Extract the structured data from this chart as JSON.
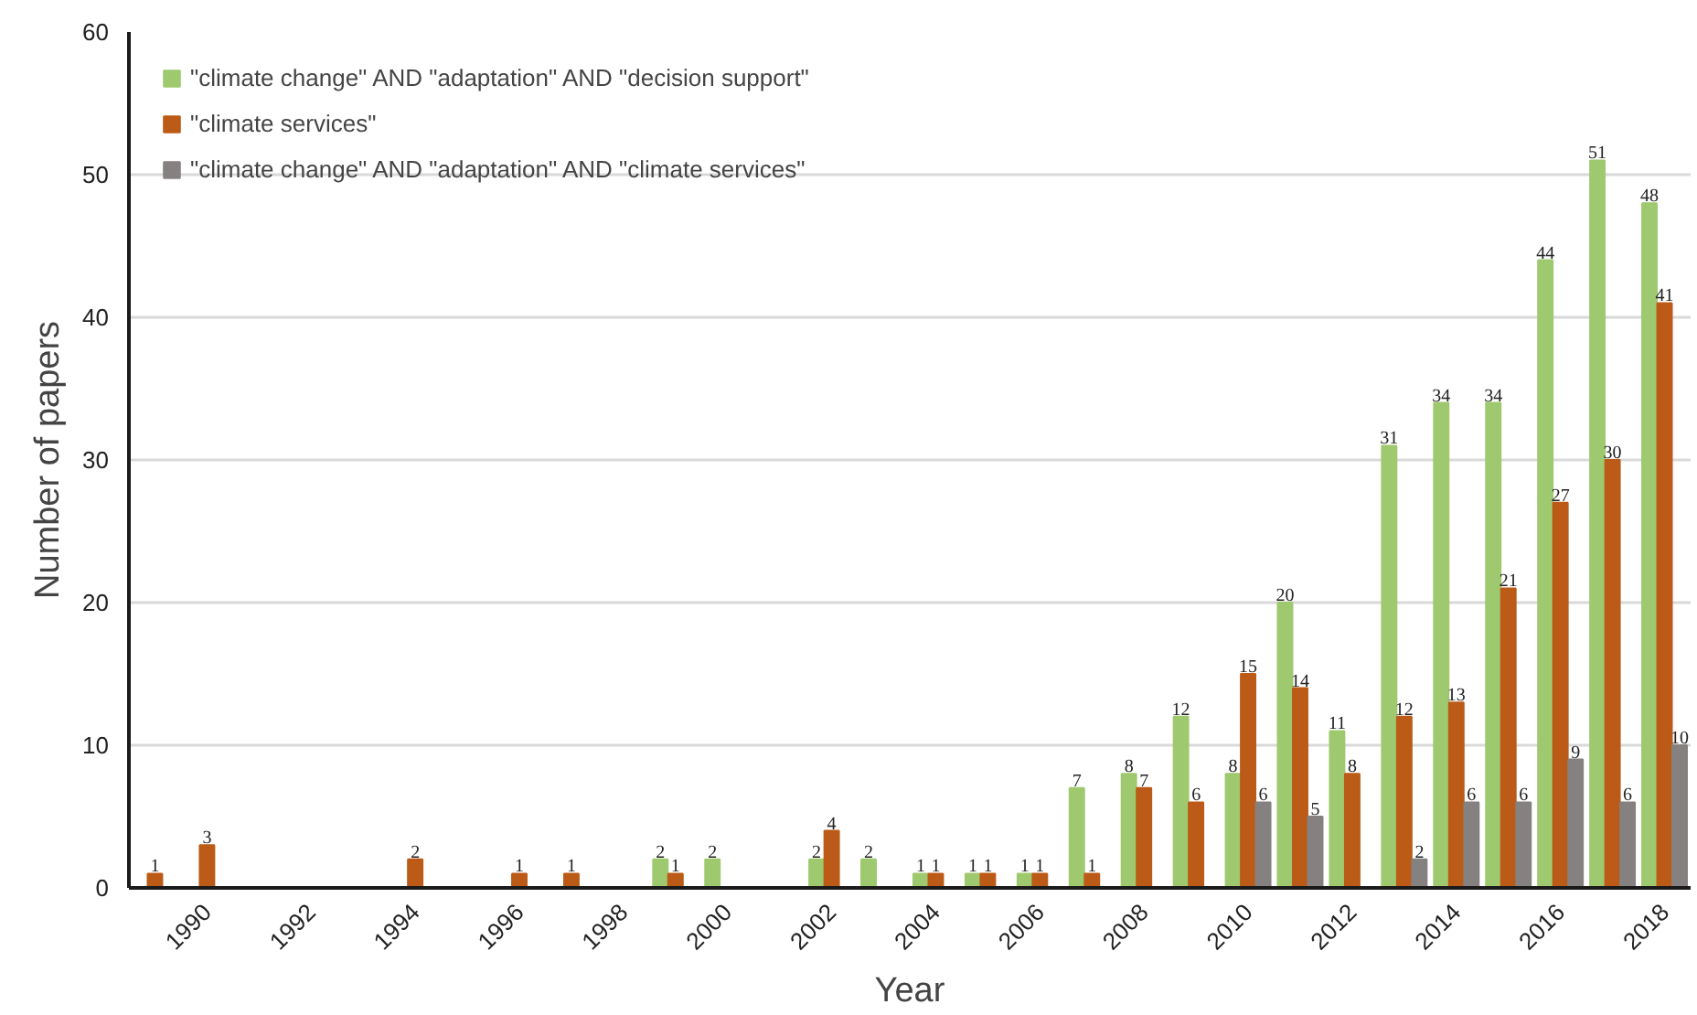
{
  "chart_data": {
    "type": "bar",
    "xlabel": "Year",
    "ylabel": "Number of papers",
    "categories": [
      null,
      "1990",
      null,
      "1992",
      null,
      "1994",
      null,
      "1996",
      null,
      "1998",
      null,
      "2000",
      null,
      "2002",
      null,
      "2004",
      null,
      "2006",
      null,
      "2008",
      null,
      "2010",
      null,
      "2012",
      null,
      "2014",
      null,
      "2016",
      null,
      "2018"
    ],
    "series": [
      {
        "name": "\"climate change\" AND \"adaptation\" AND \"decision support\"",
        "color": "#9fc96e",
        "values": [
          null,
          null,
          null,
          null,
          null,
          null,
          null,
          null,
          null,
          null,
          2,
          2,
          null,
          2,
          2,
          1,
          1,
          1,
          7,
          8,
          12,
          8,
          20,
          11,
          31,
          34,
          34,
          44,
          51,
          48
        ]
      },
      {
        "name": "\"climate services\"",
        "color": "#bb5b17",
        "values": [
          1,
          3,
          null,
          null,
          null,
          2,
          null,
          1,
          1,
          null,
          1,
          null,
          null,
          4,
          null,
          1,
          1,
          1,
          1,
          7,
          6,
          15,
          14,
          8,
          12,
          13,
          21,
          27,
          30,
          41
        ]
      },
      {
        "name": "\"climate change\" AND \"adaptation\" AND \"climate services\"",
        "color": "#858180",
        "values": [
          null,
          null,
          null,
          null,
          null,
          null,
          null,
          null,
          null,
          null,
          null,
          null,
          null,
          null,
          null,
          null,
          null,
          null,
          null,
          null,
          null,
          6,
          5,
          null,
          2,
          6,
          6,
          9,
          6,
          10
        ]
      }
    ],
    "ylim": [
      0,
      60
    ],
    "yticks": [
      0,
      10,
      20,
      30,
      40,
      50,
      60
    ],
    "grid": "y",
    "legend": "top left",
    "data_labels": true
  }
}
